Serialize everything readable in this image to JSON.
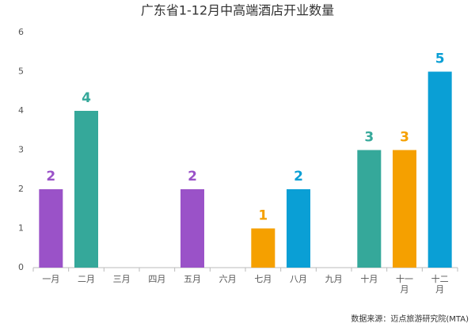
{
  "chart_data": {
    "type": "bar",
    "title": "广东省1-12月中高端酒店开业数量",
    "categories": [
      "一月",
      "二月",
      "三月",
      "四月",
      "五月",
      "六月",
      "七月",
      "八月",
      "九月",
      "十月",
      "十一月",
      "十二月"
    ],
    "values": [
      2,
      4,
      0,
      0,
      2,
      0,
      1,
      2,
      0,
      3,
      3,
      5
    ],
    "colors": [
      "#9a52c8",
      "#35a89a",
      null,
      null,
      "#9a52c8",
      null,
      "#f5a000",
      "#0a9fd5",
      null,
      "#35a89a",
      "#f5a000",
      "#0a9fd5"
    ],
    "ylim": [
      0,
      6
    ],
    "yticks": [
      0,
      1,
      2,
      3,
      4,
      5,
      6
    ],
    "grid": false,
    "source": "数据来源：迈点旅游研究院(MTA)"
  }
}
